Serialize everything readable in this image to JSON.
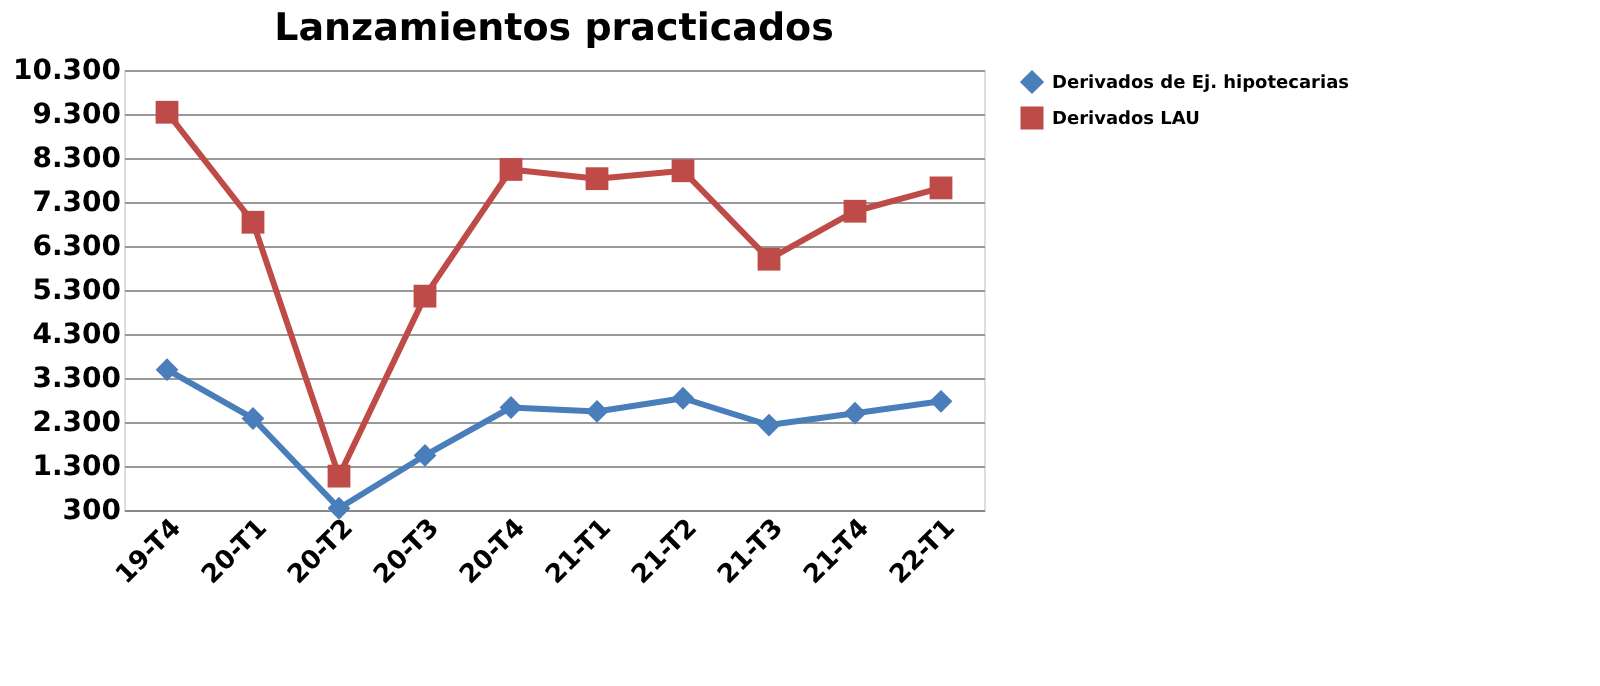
{
  "chart_data": {
    "type": "line",
    "title": "Lanzamientos practicados",
    "categories": [
      "19-T4",
      "20-T1",
      "20-T2",
      "20-T3",
      "20-T4",
      "21-T1",
      "21-T2",
      "21-T3",
      "21-T4",
      "22-T1"
    ],
    "series": [
      {
        "name": "Derivados de Ej. hipotecarias",
        "color": "#4a7ebb",
        "marker": "diamond",
        "values": [
          3490,
          2380,
          340,
          1540,
          2630,
          2540,
          2840,
          2230,
          2500,
          2770
        ]
      },
      {
        "name": "Derivados LAU",
        "color": "#be4b48",
        "marker": "square",
        "values": [
          9340,
          6840,
          1070,
          5160,
          8040,
          7830,
          8010,
          6000,
          7090,
          7620
        ]
      }
    ],
    "ylim": [
      300,
      10300
    ],
    "yticks": [
      {
        "value": 300,
        "label": "300"
      },
      {
        "value": 1300,
        "label": "1.300"
      },
      {
        "value": 2300,
        "label": "2.300"
      },
      {
        "value": 3300,
        "label": "3.300"
      },
      {
        "value": 4300,
        "label": "4.300"
      },
      {
        "value": 5300,
        "label": "5.300"
      },
      {
        "value": 6300,
        "label": "6.300"
      },
      {
        "value": 7300,
        "label": "7.300"
      },
      {
        "value": 8300,
        "label": "8.300"
      },
      {
        "value": 9300,
        "label": "9.300"
      },
      {
        "value": 10300,
        "label": "10.300"
      }
    ],
    "grid": "y",
    "legend": "right",
    "line_style": "solid"
  }
}
